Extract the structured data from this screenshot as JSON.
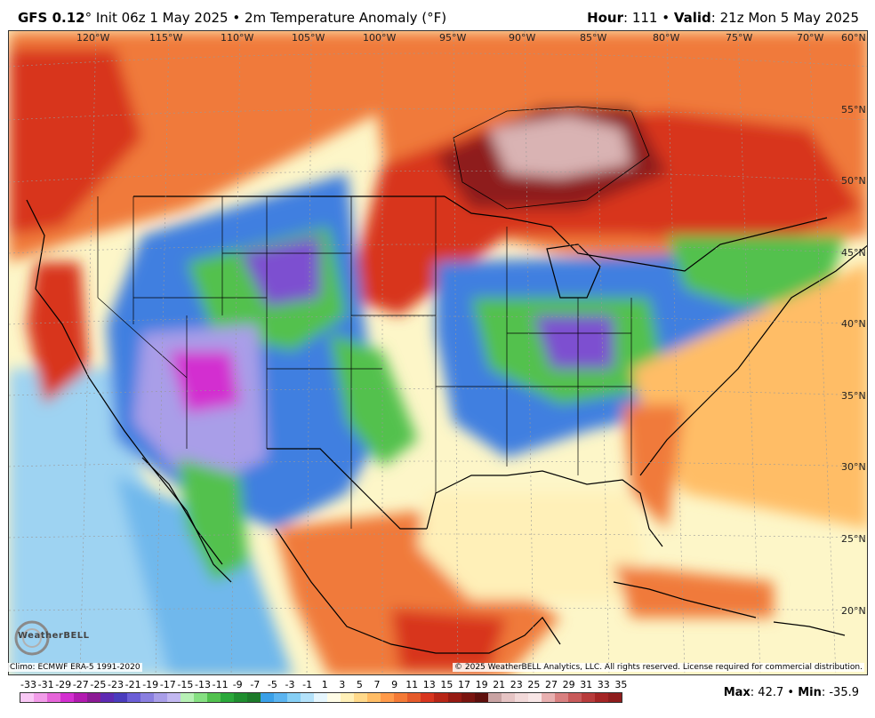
{
  "header": {
    "model": "GFS 0.12",
    "degree": "°",
    "init": " Init 06z 1 May 2025 • 2m Temperature Anomaly (°F)",
    "hour_label": "Hour",
    "hour_value": ": 111 • ",
    "valid_label": "Valid",
    "valid_value": ": 21z Mon 5 May 2025"
  },
  "map": {
    "longitude_labels": [
      "120°W",
      "115°W",
      "110°W",
      "105°W",
      "100°W",
      "95°W",
      "90°W",
      "85°W",
      "80°W",
      "75°W",
      "70°W"
    ],
    "latitude_labels": [
      "60°N",
      "55°N",
      "50°N",
      "45°N",
      "40°N",
      "35°N",
      "30°N",
      "25°N",
      "20°N"
    ],
    "colors": {
      "ocean_cool": "#9ed3f2",
      "warm": "#f07a3a",
      "hot": "#d8351e",
      "extreme": "#8e1c1c",
      "cold_blue": "#3f7fe0",
      "cold_green": "#52c14e",
      "cold_purple": "#7d4fd0",
      "cold_magenta": "#d32fd0",
      "neutral": "#fdf6c8"
    }
  },
  "footer": {
    "climo": "Climo: ECMWF ERA-5 1991-2020",
    "copyright": "© 2025 WeatherBELL Analytics, LLC. All rights reserved. License required for commercial distribution.",
    "logo_text": "WeatherBELL"
  },
  "colorbar": {
    "labels": [
      "-33",
      "-31",
      "-29",
      "-27",
      "-25",
      "-23",
      "-21",
      "-19",
      "-17",
      "-15",
      "-13",
      "-11",
      "-9",
      "-7",
      "-5",
      "-3",
      "-1",
      "1",
      "3",
      "5",
      "7",
      "9",
      "11",
      "13",
      "15",
      "17",
      "19",
      "21",
      "23",
      "25",
      "27",
      "29",
      "31",
      "33",
      "35"
    ],
    "colors": [
      "#f9c8f5",
      "#f29ce9",
      "#e665d9",
      "#d32fd0",
      "#b21ab0",
      "#8c1a95",
      "#5e2ab3",
      "#4a3cbd",
      "#6b5ed6",
      "#8a7fe0",
      "#a99ee8",
      "#c2b8f0",
      "#b7f0b5",
      "#86e082",
      "#52c14e",
      "#2aa83a",
      "#1f8e2f",
      "#1d7a2a",
      "#3aa0e8",
      "#5bb4f0",
      "#86cff5",
      "#b4e2fa",
      "#e6f6fd",
      "#fffce6",
      "#fff0b8",
      "#ffd98a",
      "#ffbd66",
      "#ff9a4a",
      "#f47a36",
      "#e55a2a",
      "#d8351e",
      "#b82516",
      "#961a12",
      "#7a140f",
      "#5e0f0c",
      "#c9a3a3",
      "#e6c4c4",
      "#f2d9d9",
      "#f8e6e6",
      "#e8b0b0",
      "#d98080",
      "#c85a5a",
      "#b83b3b",
      "#a42424",
      "#8e1c1c"
    ],
    "max_label": "Max",
    "max_value": ": 42.7 • ",
    "min_label": "Min",
    "min_value": ": -35.9"
  }
}
